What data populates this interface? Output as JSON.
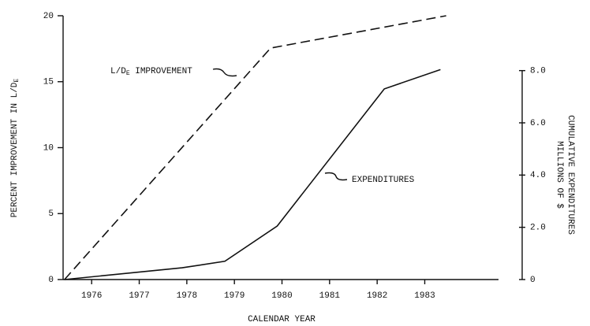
{
  "chart_data": {
    "type": "line",
    "x_label": "CALENDAR YEAR",
    "y_label": {
      "main": "PERCENT IMPROVEMENT IN L/D",
      "sub": "E"
    },
    "y2_label": [
      "CUMULATIVE EXPENDITURES",
      "MILLIONS OF $"
    ],
    "xlim": [
      1975.4,
      1984.55
    ],
    "xticks": [
      1976,
      1977,
      1978,
      1979,
      1980,
      1981,
      1982,
      1983
    ],
    "ylim": [
      0,
      20
    ],
    "yticks": [
      0,
      5,
      10,
      15,
      20
    ],
    "y2lim": [
      0,
      10.1
    ],
    "y2ticks": [
      0,
      {
        "value": 2,
        "label": "2.0"
      },
      {
        "value": 4,
        "label": "4.0"
      },
      {
        "value": 6,
        "label": "6.0"
      },
      {
        "value": 8,
        "label": "8.0"
      }
    ],
    "series": [
      {
        "color": "#111111",
        "dashed": true,
        "x": [
          1975.43,
          1979.76,
          1983.45
        ],
        "values": [
          0,
          17.55,
          20
        ]
      },
      {
        "color": "#111111",
        "dashed": false,
        "axis": "y2",
        "x": [
          1975.43,
          1977.9,
          1978.8,
          1979.9,
          1982.15,
          1983.33
        ],
        "values": [
          0,
          0.45,
          0.7,
          2.05,
          7.3,
          8.04
        ]
      }
    ],
    "annotations": [
      {
        "text": "L/D",
        "sub": "E",
        "rest": " IMPROVEMENT"
      },
      {
        "text": "EXPENDITURES"
      }
    ]
  }
}
